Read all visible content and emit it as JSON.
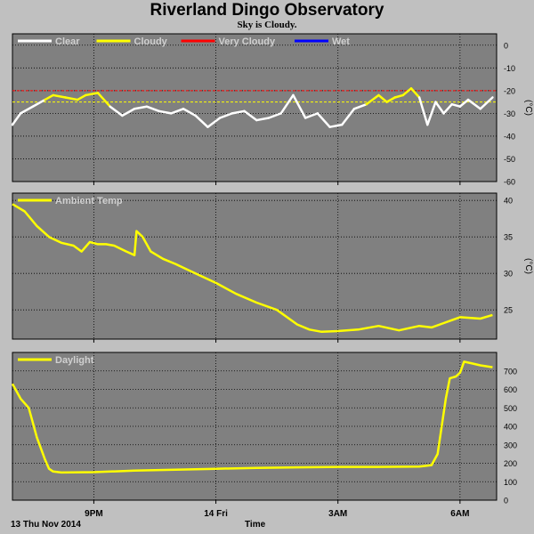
{
  "title": "Riverland Dingo Observatory",
  "subtitle": "Sky is Cloudy.",
  "footer": {
    "date_label": "13 Thu Nov 2014",
    "x_axis_title": "Time"
  },
  "colors": {
    "background": "#c0c0c0",
    "plot_bg": "#808080",
    "grid": "#000000",
    "clear": "#ffffff",
    "cloudy": "#ffff00",
    "very_cloudy": "#ff0000",
    "wet": "#0000ff"
  },
  "chart_data": [
    {
      "type": "line",
      "name": "sky",
      "ylabel": "(°C)",
      "ylim": [
        -60,
        5
      ],
      "yticks": [
        0,
        -10,
        -20,
        -30,
        -40,
        -50,
        -60
      ],
      "grid": true,
      "legend_placement": "top-left",
      "legend": [
        {
          "label": "Clear",
          "color": "#ffffff"
        },
        {
          "label": "Cloudy",
          "color": "#ffff00"
        },
        {
          "label": "Very Cloudy",
          "color": "#ff0000"
        },
        {
          "label": "Wet",
          "color": "#0000ff"
        }
      ],
      "thresholds": [
        {
          "value": -20,
          "color": "#ff0000"
        },
        {
          "value": -25,
          "color": "#ffff00"
        }
      ],
      "x_hours": [
        0,
        0.2,
        0.5,
        0.8,
        1.0,
        1.3,
        1.6,
        1.8,
        2.1,
        2.4,
        2.7,
        3.0,
        3.3,
        3.6,
        3.9,
        4.2,
        4.5,
        4.8,
        5.1,
        5.4,
        5.7,
        6.0,
        6.3,
        6.6,
        6.9,
        7.2,
        7.5,
        7.8,
        8.1,
        8.4,
        8.7,
        9.0,
        9.2,
        9.4,
        9.6,
        9.8,
        10.0,
        10.2,
        10.4,
        10.6,
        10.8,
        11.0,
        11.2,
        11.5,
        11.8
      ],
      "values": [
        -35,
        -30,
        -27,
        -24,
        -22,
        -23,
        -24,
        -22,
        -21,
        -27,
        -31,
        -28,
        -27,
        -29,
        -30,
        -28,
        -31,
        -36,
        -32,
        -30,
        -29,
        -33,
        -32,
        -30,
        -22,
        -32,
        -30,
        -36,
        -35,
        -28,
        -26,
        -22,
        -25,
        -23,
        -22,
        -19,
        -23,
        -35,
        -25,
        -30,
        -26,
        -27,
        -24,
        -28,
        -23
      ]
    },
    {
      "type": "line",
      "name": "ambient",
      "ylabel": "(°C)",
      "ylim": [
        21,
        41
      ],
      "yticks": [
        40,
        35,
        30,
        25
      ],
      "grid": true,
      "legend_placement": "top-left",
      "legend": [
        {
          "label": "Ambient Temp",
          "color": "#ffff00"
        }
      ],
      "x_hours": [
        0,
        0.3,
        0.6,
        0.9,
        1.2,
        1.5,
        1.7,
        1.9,
        2.1,
        2.3,
        2.5,
        2.8,
        3.0,
        3.05,
        3.2,
        3.4,
        3.7,
        4.0,
        4.5,
        5.0,
        5.5,
        6.0,
        6.5,
        7.0,
        7.3,
        7.6,
        8.0,
        8.5,
        9.0,
        9.5,
        10.0,
        10.3,
        10.6,
        11.0,
        11.5,
        11.8
      ],
      "values": [
        39.5,
        38.5,
        36.5,
        35,
        34.2,
        33.8,
        33,
        34.3,
        34,
        34,
        33.8,
        33,
        32.5,
        35.8,
        35,
        33,
        32,
        31.3,
        30,
        28.7,
        27.2,
        26,
        25,
        23,
        22.3,
        22,
        22.1,
        22.3,
        22.8,
        22.2,
        22.8,
        22.6,
        23.2,
        24,
        23.8,
        24.3
      ]
    },
    {
      "type": "line",
      "name": "daylight",
      "ylabel": "",
      "ylim": [
        0,
        800
      ],
      "yticks": [
        700,
        600,
        500,
        400,
        300,
        200,
        100,
        0
      ],
      "grid": true,
      "legend_placement": "top-left",
      "legend": [
        {
          "label": "Daylight",
          "color": "#ffff00"
        }
      ],
      "x_hours": [
        0,
        0.2,
        0.4,
        0.5,
        0.6,
        0.8,
        0.9,
        1.0,
        1.2,
        2.0,
        3.0,
        4.0,
        5.0,
        6.0,
        7.0,
        8.0,
        9.0,
        10.0,
        10.3,
        10.45,
        10.55,
        10.65,
        10.75,
        10.9,
        11.0,
        11.1,
        11.3,
        11.5,
        11.8
      ],
      "values": [
        630,
        550,
        500,
        420,
        340,
        220,
        170,
        155,
        150,
        152,
        160,
        165,
        170,
        175,
        178,
        180,
        180,
        182,
        190,
        250,
        400,
        550,
        660,
        670,
        690,
        750,
        740,
        730,
        720
      ]
    }
  ],
  "x_axis": {
    "start_hour_label_offset": 0,
    "ticks": [
      {
        "label": "9PM",
        "hour": 2.0
      },
      {
        "label": "14 Fri",
        "hour": 5.0
      },
      {
        "label": "3AM",
        "hour": 8.0
      },
      {
        "label": "6AM",
        "hour": 11.0
      }
    ],
    "range_hours": [
      0,
      11.9
    ]
  }
}
